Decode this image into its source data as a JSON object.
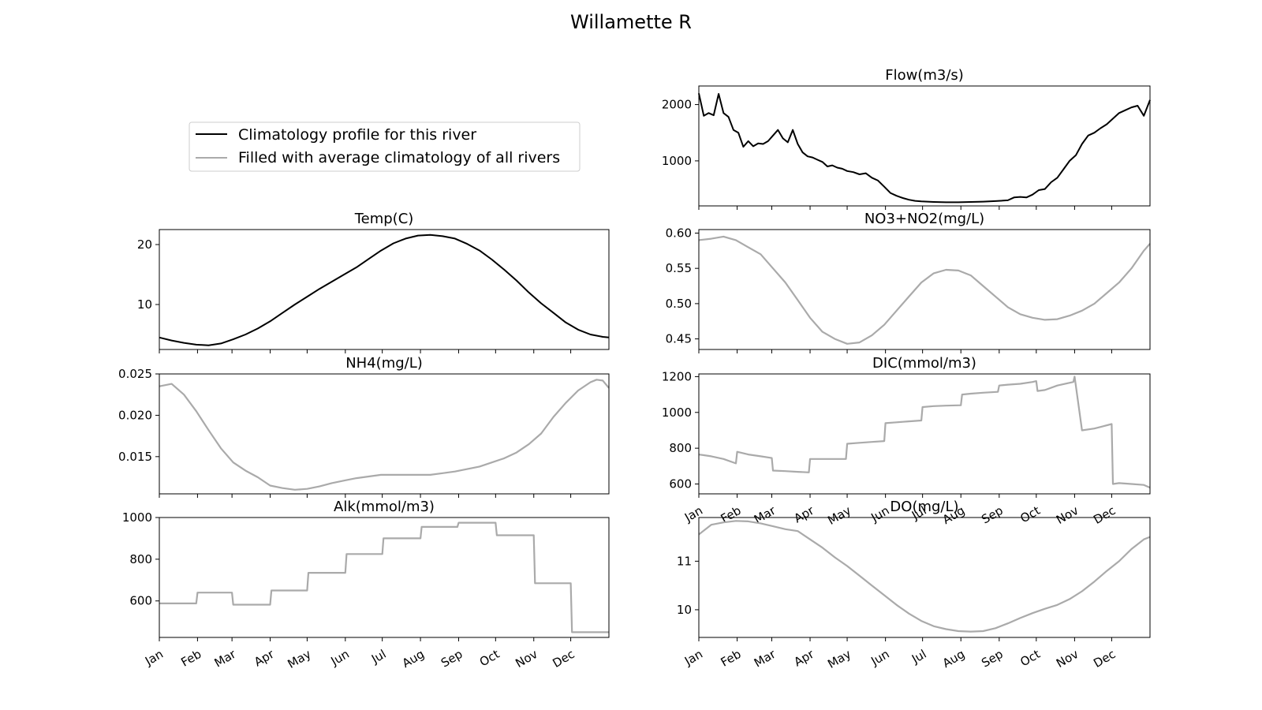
{
  "figure": {
    "title": "Willamette R",
    "legend": {
      "placement": "upper-left",
      "entries": [
        {
          "label": "Climatology profile for this river",
          "color": "#000000"
        },
        {
          "label": "Filled with average climatology of all rivers",
          "color": "#aaaaaa"
        }
      ]
    },
    "month_labels": [
      "Jan",
      "Feb",
      "Mar",
      "Apr",
      "May",
      "Jun",
      "Jul",
      "Aug",
      "Sep",
      "Oct",
      "Nov",
      "Dec"
    ]
  },
  "chart_data": [
    {
      "id": "flow",
      "type": "line",
      "title": "Flow(m3/s)",
      "xlabel": "",
      "ylabel": "",
      "xlim": [
        0,
        365
      ],
      "ylim": [
        200,
        2330
      ],
      "yticks": [
        {
          "v": 1000,
          "label": "1000"
        },
        {
          "v": 2000,
          "label": "2000"
        }
      ],
      "show_xtick_labels": false,
      "series": [
        {
          "style": "river",
          "color": "#000000",
          "x": [
            0,
            4,
            8,
            12,
            16,
            20,
            24,
            28,
            32,
            36,
            40,
            44,
            48,
            52,
            56,
            60,
            64,
            68,
            72,
            76,
            80,
            84,
            88,
            92,
            96,
            100,
            104,
            108,
            112,
            116,
            120,
            125,
            130,
            135,
            140,
            145,
            150,
            155,
            160,
            165,
            170,
            175,
            180,
            190,
            200,
            210,
            220,
            230,
            240,
            250,
            255,
            260,
            265,
            270,
            275,
            280,
            285,
            290,
            295,
            300,
            305,
            310,
            315,
            320,
            325,
            330,
            335,
            340,
            345,
            350,
            355,
            360,
            365
          ],
          "y": [
            2200,
            1800,
            1850,
            1810,
            2190,
            1850,
            1780,
            1550,
            1500,
            1250,
            1350,
            1260,
            1310,
            1300,
            1350,
            1450,
            1550,
            1400,
            1330,
            1550,
            1300,
            1150,
            1080,
            1060,
            1020,
            980,
            900,
            920,
            880,
            860,
            820,
            800,
            760,
            780,
            700,
            650,
            540,
            430,
            380,
            340,
            310,
            290,
            280,
            270,
            265,
            265,
            270,
            275,
            285,
            300,
            350,
            360,
            350,
            400,
            480,
            500,
            620,
            700,
            850,
            1000,
            1100,
            1300,
            1450,
            1500,
            1580,
            1650,
            1750,
            1850,
            1900,
            1950,
            1980,
            1800,
            2080
          ]
        }
      ]
    },
    {
      "id": "temp",
      "type": "line",
      "title": "Temp(C)",
      "xlabel": "",
      "ylabel": "",
      "xlim": [
        0,
        365
      ],
      "ylim": [
        2.5,
        22.5
      ],
      "yticks": [
        {
          "v": 10,
          "label": "10"
        },
        {
          "v": 20,
          "label": "20"
        }
      ],
      "show_xtick_labels": false,
      "series": [
        {
          "style": "river",
          "color": "#000000",
          "x": [
            0,
            10,
            20,
            30,
            40,
            50,
            60,
            70,
            80,
            90,
            100,
            110,
            120,
            130,
            140,
            150,
            160,
            170,
            180,
            190,
            200,
            210,
            220,
            230,
            240,
            250,
            260,
            270,
            280,
            290,
            300,
            310,
            320,
            330,
            340,
            350,
            360,
            365
          ],
          "y": [
            4.5,
            4.0,
            3.6,
            3.3,
            3.2,
            3.5,
            4.2,
            5.0,
            6.0,
            7.2,
            8.6,
            10.0,
            11.3,
            12.6,
            13.8,
            15.0,
            16.2,
            17.6,
            19.0,
            20.2,
            21.0,
            21.5,
            21.6,
            21.4,
            21.0,
            20.1,
            19.0,
            17.5,
            15.8,
            14.0,
            12.0,
            10.2,
            8.6,
            7.0,
            5.8,
            5.0,
            4.6,
            4.5
          ]
        }
      ]
    },
    {
      "id": "no3",
      "type": "line",
      "title": "NO3+NO2(mg/L)",
      "xlabel": "",
      "ylabel": "",
      "xlim": [
        0,
        365
      ],
      "ylim": [
        0.435,
        0.605
      ],
      "yticks": [
        {
          "v": 0.45,
          "label": "0.45"
        },
        {
          "v": 0.5,
          "label": "0.50"
        },
        {
          "v": 0.55,
          "label": "0.55"
        },
        {
          "v": 0.6,
          "label": "0.60"
        }
      ],
      "show_xtick_labels": false,
      "series": [
        {
          "style": "filled",
          "color": "#aaaaaa",
          "x": [
            0,
            10,
            20,
            30,
            40,
            50,
            60,
            70,
            80,
            90,
            100,
            110,
            120,
            130,
            140,
            150,
            160,
            170,
            180,
            190,
            200,
            210,
            220,
            230,
            240,
            250,
            260,
            270,
            280,
            290,
            300,
            310,
            320,
            330,
            340,
            350,
            360,
            365
          ],
          "y": [
            0.59,
            0.592,
            0.595,
            0.59,
            0.58,
            0.57,
            0.55,
            0.53,
            0.505,
            0.48,
            0.46,
            0.45,
            0.443,
            0.445,
            0.455,
            0.47,
            0.49,
            0.51,
            0.53,
            0.543,
            0.548,
            0.547,
            0.54,
            0.525,
            0.51,
            0.495,
            0.485,
            0.48,
            0.477,
            0.478,
            0.483,
            0.49,
            0.5,
            0.515,
            0.53,
            0.55,
            0.575,
            0.585
          ]
        }
      ]
    },
    {
      "id": "nh4",
      "type": "line",
      "title": "NH4(mg/L)",
      "xlabel": "",
      "ylabel": "",
      "xlim": [
        0,
        365
      ],
      "ylim": [
        0.0105,
        0.025
      ],
      "yticks": [
        {
          "v": 0.015,
          "label": "0.015"
        },
        {
          "v": 0.02,
          "label": "0.020"
        },
        {
          "v": 0.025,
          "label": "0.025"
        }
      ],
      "show_xtick_labels": false,
      "series": [
        {
          "style": "filled",
          "color": "#aaaaaa",
          "x": [
            0,
            10,
            20,
            30,
            40,
            50,
            60,
            70,
            80,
            90,
            100,
            110,
            120,
            130,
            140,
            150,
            160,
            170,
            180,
            190,
            200,
            210,
            220,
            230,
            240,
            250,
            260,
            270,
            280,
            290,
            300,
            310,
            320,
            330,
            340,
            350,
            355,
            360,
            365
          ],
          "y": [
            0.0235,
            0.0238,
            0.0225,
            0.0205,
            0.0182,
            0.016,
            0.0143,
            0.0133,
            0.0125,
            0.0115,
            0.0112,
            0.011,
            0.0111,
            0.0114,
            0.0118,
            0.0121,
            0.0124,
            0.0126,
            0.0128,
            0.0128,
            0.0128,
            0.0128,
            0.0128,
            0.013,
            0.0132,
            0.0135,
            0.0138,
            0.0143,
            0.0148,
            0.0155,
            0.0165,
            0.0178,
            0.0198,
            0.0215,
            0.023,
            0.024,
            0.0243,
            0.0242,
            0.0233
          ]
        }
      ]
    },
    {
      "id": "dic",
      "type": "line",
      "title": "DIC(mmol/m3)",
      "xlabel": "",
      "ylabel": "",
      "xlim": [
        0,
        365
      ],
      "ylim": [
        545,
        1215
      ],
      "yticks": [
        {
          "v": 600,
          "label": "600"
        },
        {
          "v": 800,
          "label": "800"
        },
        {
          "v": 1000,
          "label": "1000"
        },
        {
          "v": 1200,
          "label": "1200"
        }
      ],
      "show_xtick_labels": true,
      "series": [
        {
          "style": "filled",
          "color": "#aaaaaa",
          "x": [
            0,
            10,
            20,
            30,
            31,
            40,
            50,
            59,
            60,
            70,
            80,
            89,
            90,
            100,
            110,
            119,
            120,
            130,
            140,
            150,
            151,
            160,
            170,
            180,
            181,
            190,
            200,
            212,
            213,
            220,
            230,
            242,
            243,
            250,
            260,
            270,
            273,
            274,
            280,
            290,
            303,
            304,
            310,
            320,
            334,
            335,
            340,
            350,
            360,
            365
          ],
          "y": [
            765,
            755,
            740,
            715,
            780,
            765,
            755,
            745,
            675,
            672,
            668,
            665,
            740,
            740,
            740,
            740,
            825,
            830,
            835,
            840,
            940,
            945,
            950,
            955,
            1030,
            1035,
            1038,
            1040,
            1100,
            1105,
            1110,
            1115,
            1150,
            1155,
            1160,
            1170,
            1175,
            1120,
            1125,
            1150,
            1170,
            1200,
            900,
            910,
            935,
            600,
            605,
            600,
            595,
            580
          ]
        }
      ]
    },
    {
      "id": "alk",
      "type": "line",
      "title": "Alk(mmol/m3)",
      "xlabel": "",
      "ylabel": "",
      "xlim": [
        0,
        365
      ],
      "ylim": [
        425,
        1000
      ],
      "yticks": [
        {
          "v": 600,
          "label": "600"
        },
        {
          "v": 800,
          "label": "800"
        },
        {
          "v": 1000,
          "label": "1000"
        }
      ],
      "show_xtick_labels": true,
      "series": [
        {
          "style": "filled",
          "color": "#aaaaaa",
          "x": [
            0,
            30,
            31,
            59,
            60,
            90,
            91,
            120,
            121,
            151,
            152,
            181,
            182,
            212,
            213,
            242,
            243,
            273,
            274,
            304,
            305,
            334,
            335,
            365
          ],
          "y": [
            588,
            588,
            640,
            640,
            582,
            582,
            650,
            650,
            735,
            735,
            825,
            825,
            900,
            900,
            955,
            955,
            975,
            975,
            915,
            915,
            685,
            685,
            450,
            450
          ]
        }
      ]
    },
    {
      "id": "do",
      "type": "line",
      "title": "DO(mg/L)",
      "xlabel": "",
      "ylabel": "",
      "xlim": [
        0,
        365
      ],
      "ylim": [
        9.43,
        11.9
      ],
      "yticks": [
        {
          "v": 10,
          "label": "10"
        },
        {
          "v": 11,
          "label": "11"
        }
      ],
      "show_xtick_labels": true,
      "series": [
        {
          "style": "filled",
          "color": "#aaaaaa",
          "x": [
            0,
            10,
            20,
            30,
            40,
            50,
            60,
            70,
            80,
            90,
            100,
            110,
            120,
            130,
            140,
            150,
            160,
            170,
            180,
            190,
            200,
            210,
            220,
            230,
            240,
            250,
            260,
            270,
            280,
            290,
            300,
            310,
            320,
            330,
            340,
            350,
            360,
            365
          ],
          "y": [
            11.55,
            11.75,
            11.8,
            11.83,
            11.82,
            11.78,
            11.72,
            11.66,
            11.62,
            11.45,
            11.28,
            11.08,
            10.9,
            10.7,
            10.5,
            10.3,
            10.1,
            9.92,
            9.77,
            9.66,
            9.6,
            9.56,
            9.55,
            9.56,
            9.62,
            9.72,
            9.83,
            9.93,
            10.02,
            10.1,
            10.22,
            10.38,
            10.58,
            10.8,
            11.0,
            11.25,
            11.45,
            11.5
          ]
        }
      ]
    }
  ]
}
